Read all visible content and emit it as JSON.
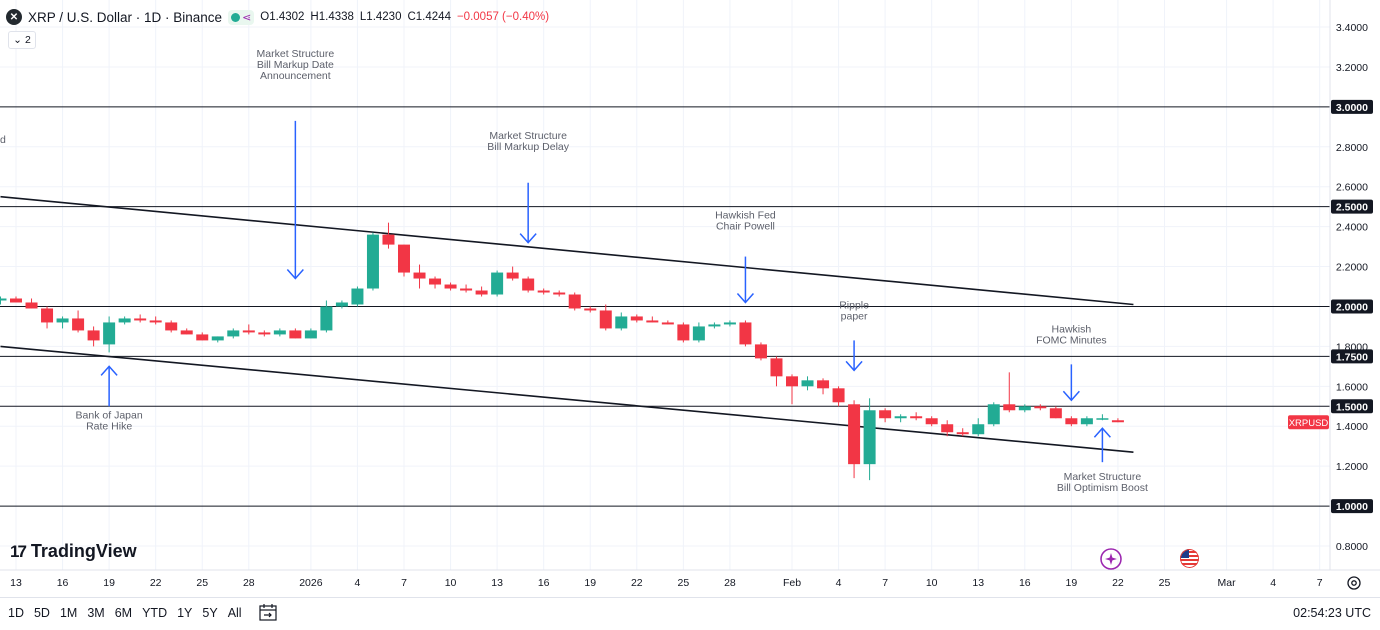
{
  "header": {
    "symbol_icon_glyph": "✕",
    "title": "XRP / U.S. Dollar · 1D · Binance",
    "ohlc": {
      "open": "O1.4302",
      "high": "H1.4338",
      "low": "L1.4230",
      "close": "C1.4244",
      "change": "−0.0057 (−0.40%)"
    },
    "indicator_count": "2"
  },
  "bottom_bar": {
    "ranges": [
      "1D",
      "5D",
      "1M",
      "3M",
      "6M",
      "YTD",
      "1Y",
      "5Y",
      "All"
    ],
    "clock": "02:54:23 UTC"
  },
  "logo": {
    "mark": "17",
    "text": "TradingView"
  },
  "colors": {
    "up": "#22ab94",
    "down": "#f23645",
    "annotation": "#2962ff",
    "annotation_text": "#5d606b",
    "axis_text": "#131722"
  },
  "chart_data": {
    "type": "candlestick",
    "symbol": "XRPUSD",
    "price_label": "XRPUSD",
    "ylim": [
      0.7,
      3.5
    ],
    "y_ticks": [
      {
        "v": 0.8,
        "label": "0.8000"
      },
      {
        "v": 1.2,
        "label": "1.2000"
      },
      {
        "v": 1.4,
        "label": "1.4000"
      },
      {
        "v": 1.6,
        "label": "1.6000"
      },
      {
        "v": 1.8,
        "label": "1.8000"
      },
      {
        "v": 2.2,
        "label": "2.2000"
      },
      {
        "v": 2.4,
        "label": "2.4000"
      },
      {
        "v": 2.6,
        "label": "2.6000"
      },
      {
        "v": 2.8,
        "label": "2.8000"
      },
      {
        "v": 3.2,
        "label": "3.2000"
      },
      {
        "v": 3.4,
        "label": "3.4000"
      }
    ],
    "level_lines": [
      {
        "v": 3.0,
        "label": "3.0000"
      },
      {
        "v": 2.5,
        "label": "2.5000"
      },
      {
        "v": 2.0,
        "label": "2.0000"
      },
      {
        "v": 1.75,
        "label": "1.7500"
      },
      {
        "v": 1.5,
        "label": "1.5000"
      },
      {
        "v": 1.0,
        "label": "1.0000"
      }
    ],
    "x_ticks": [
      {
        "d": 0,
        "label": "13"
      },
      {
        "d": 3,
        "label": "16"
      },
      {
        "d": 6,
        "label": "19"
      },
      {
        "d": 9,
        "label": "22"
      },
      {
        "d": 12,
        "label": "25"
      },
      {
        "d": 15,
        "label": "28"
      },
      {
        "d": 19,
        "label": "2026"
      },
      {
        "d": 22,
        "label": "4"
      },
      {
        "d": 25,
        "label": "7"
      },
      {
        "d": 28,
        "label": "10"
      },
      {
        "d": 31,
        "label": "13"
      },
      {
        "d": 34,
        "label": "16"
      },
      {
        "d": 37,
        "label": "19"
      },
      {
        "d": 40,
        "label": "22"
      },
      {
        "d": 43,
        "label": "25"
      },
      {
        "d": 46,
        "label": "28"
      },
      {
        "d": 50,
        "label": "Feb"
      },
      {
        "d": 53,
        "label": "4"
      },
      {
        "d": 56,
        "label": "7"
      },
      {
        "d": 59,
        "label": "10"
      },
      {
        "d": 62,
        "label": "13"
      },
      {
        "d": 65,
        "label": "16"
      },
      {
        "d": 68,
        "label": "19"
      },
      {
        "d": 71,
        "label": "22"
      },
      {
        "d": 74,
        "label": "25"
      },
      {
        "d": 78,
        "label": "Mar"
      },
      {
        "d": 81,
        "label": "4"
      },
      {
        "d": 84,
        "label": "7"
      }
    ],
    "candles": [
      [
        -1,
        2.03,
        2.05,
        2.01,
        2.04
      ],
      [
        0,
        2.04,
        2.05,
        2.02,
        2.02
      ],
      [
        1,
        2.02,
        2.04,
        1.99,
        1.99
      ],
      [
        2,
        1.99,
        2.0,
        1.89,
        1.92
      ],
      [
        3,
        1.92,
        1.95,
        1.89,
        1.94
      ],
      [
        4,
        1.94,
        1.98,
        1.87,
        1.88
      ],
      [
        5,
        1.88,
        1.9,
        1.8,
        1.83
      ],
      [
        6,
        1.81,
        1.95,
        1.77,
        1.92
      ],
      [
        7,
        1.92,
        1.95,
        1.91,
        1.94
      ],
      [
        8,
        1.94,
        1.96,
        1.92,
        1.93
      ],
      [
        9,
        1.93,
        1.95,
        1.91,
        1.92
      ],
      [
        10,
        1.92,
        1.93,
        1.87,
        1.88
      ],
      [
        11,
        1.88,
        1.89,
        1.86,
        1.86
      ],
      [
        12,
        1.86,
        1.87,
        1.83,
        1.83
      ],
      [
        13,
        1.83,
        1.85,
        1.82,
        1.85
      ],
      [
        14,
        1.85,
        1.89,
        1.84,
        1.88
      ],
      [
        15,
        1.88,
        1.91,
        1.86,
        1.87
      ],
      [
        16,
        1.87,
        1.88,
        1.85,
        1.86
      ],
      [
        17,
        1.86,
        1.89,
        1.85,
        1.88
      ],
      [
        18,
        1.88,
        1.89,
        1.84,
        1.84
      ],
      [
        19,
        1.84,
        1.89,
        1.84,
        1.88
      ],
      [
        20,
        1.88,
        2.03,
        1.87,
        2.0
      ],
      [
        21,
        2.0,
        2.03,
        1.99,
        2.02
      ],
      [
        22,
        2.01,
        2.1,
        2.0,
        2.09
      ],
      [
        23,
        2.09,
        2.37,
        2.08,
        2.36
      ],
      [
        24,
        2.36,
        2.42,
        2.29,
        2.31
      ],
      [
        25,
        2.31,
        2.31,
        2.15,
        2.17
      ],
      [
        26,
        2.17,
        2.21,
        2.09,
        2.14
      ],
      [
        27,
        2.14,
        2.15,
        2.09,
        2.11
      ],
      [
        28,
        2.11,
        2.12,
        2.08,
        2.09
      ],
      [
        29,
        2.09,
        2.11,
        2.07,
        2.08
      ],
      [
        30,
        2.08,
        2.1,
        2.05,
        2.06
      ],
      [
        31,
        2.06,
        2.18,
        2.05,
        2.17
      ],
      [
        32,
        2.17,
        2.2,
        2.13,
        2.14
      ],
      [
        33,
        2.14,
        2.15,
        2.07,
        2.08
      ],
      [
        34,
        2.08,
        2.09,
        2.06,
        2.07
      ],
      [
        35,
        2.07,
        2.08,
        2.05,
        2.06
      ],
      [
        36,
        2.06,
        2.07,
        1.98,
        1.99
      ],
      [
        37,
        1.99,
        2.0,
        1.97,
        1.98
      ],
      [
        38,
        1.98,
        2.01,
        1.88,
        1.89
      ],
      [
        39,
        1.89,
        1.97,
        1.88,
        1.95
      ],
      [
        40,
        1.95,
        1.96,
        1.92,
        1.93
      ],
      [
        41,
        1.93,
        1.95,
        1.92,
        1.92
      ],
      [
        42,
        1.92,
        1.93,
        1.91,
        1.91
      ],
      [
        43,
        1.91,
        1.92,
        1.82,
        1.83
      ],
      [
        44,
        1.83,
        1.92,
        1.82,
        1.9
      ],
      [
        45,
        1.9,
        1.92,
        1.89,
        1.91
      ],
      [
        46,
        1.91,
        1.93,
        1.9,
        1.92
      ],
      [
        47,
        1.92,
        1.93,
        1.8,
        1.81
      ],
      [
        48,
        1.81,
        1.82,
        1.73,
        1.74
      ],
      [
        49,
        1.74,
        1.75,
        1.6,
        1.65
      ],
      [
        50,
        1.65,
        1.66,
        1.51,
        1.6
      ],
      [
        51,
        1.6,
        1.65,
        1.58,
        1.63
      ],
      [
        52,
        1.63,
        1.64,
        1.56,
        1.59
      ],
      [
        53,
        1.59,
        1.6,
        1.5,
        1.52
      ],
      [
        54,
        1.51,
        1.53,
        1.14,
        1.21
      ],
      [
        55,
        1.21,
        1.54,
        1.13,
        1.48
      ],
      [
        56,
        1.48,
        1.49,
        1.42,
        1.44
      ],
      [
        57,
        1.44,
        1.46,
        1.42,
        1.45
      ],
      [
        58,
        1.45,
        1.47,
        1.43,
        1.44
      ],
      [
        59,
        1.44,
        1.45,
        1.4,
        1.41
      ],
      [
        60,
        1.41,
        1.43,
        1.35,
        1.37
      ],
      [
        61,
        1.37,
        1.39,
        1.35,
        1.36
      ],
      [
        62,
        1.36,
        1.44,
        1.35,
        1.41
      ],
      [
        63,
        1.41,
        1.52,
        1.4,
        1.51
      ],
      [
        64,
        1.51,
        1.67,
        1.47,
        1.48
      ],
      [
        65,
        1.48,
        1.51,
        1.47,
        1.5
      ],
      [
        66,
        1.5,
        1.51,
        1.48,
        1.49
      ],
      [
        67,
        1.49,
        1.5,
        1.44,
        1.44
      ],
      [
        68,
        1.44,
        1.45,
        1.4,
        1.41
      ],
      [
        69,
        1.41,
        1.45,
        1.4,
        1.44
      ],
      [
        70,
        1.44,
        1.46,
        1.43,
        1.44
      ],
      [
        71,
        1.43,
        1.44,
        1.42,
        1.42
      ]
    ],
    "trendlines": [
      {
        "d1": -1,
        "v1": 2.55,
        "d2": 72,
        "v2": 2.01
      },
      {
        "d1": -1,
        "v1": 1.8,
        "d2": 72,
        "v2": 1.27
      }
    ],
    "annotations": [
      {
        "d": 6,
        "text": [
          "Bank of Japan",
          "Rate Hike"
        ],
        "dir": "up",
        "arrow_from": 1.5,
        "arrow_to": 1.7,
        "text_v": 1.44
      },
      {
        "d": 18,
        "text": [
          "Market Structure",
          "Bill Markup Date",
          "Announcement"
        ],
        "dir": "down",
        "arrow_from": 2.93,
        "arrow_to": 2.14,
        "text_v": 3.25
      },
      {
        "d": 33,
        "text": [
          "Market Structure",
          "Bill Markup Delay"
        ],
        "dir": "down",
        "arrow_from": 2.62,
        "arrow_to": 2.32,
        "text_v": 2.84
      },
      {
        "d": 47,
        "text": [
          "Hawkish Fed",
          "Chair Powell"
        ],
        "dir": "down",
        "arrow_from": 2.25,
        "arrow_to": 2.02,
        "text_v": 2.44
      },
      {
        "d": 54,
        "text": [
          "Ripple",
          "paper"
        ],
        "dir": "down",
        "arrow_from": 1.83,
        "arrow_to": 1.68,
        "text_v": 1.99
      },
      {
        "d": 68,
        "text": [
          "Hawkish",
          "FOMC Minutes"
        ],
        "dir": "down",
        "arrow_from": 1.71,
        "arrow_to": 1.53,
        "text_v": 1.87
      },
      {
        "d": 70,
        "text": [
          "Market Structure",
          "Bill Optimism Boost"
        ],
        "dir": "up",
        "arrow_from": 1.22,
        "arrow_to": 1.39,
        "text_v": 1.13
      }
    ],
    "partial_text": {
      "d": -1,
      "text": "d",
      "v": 2.82
    }
  }
}
